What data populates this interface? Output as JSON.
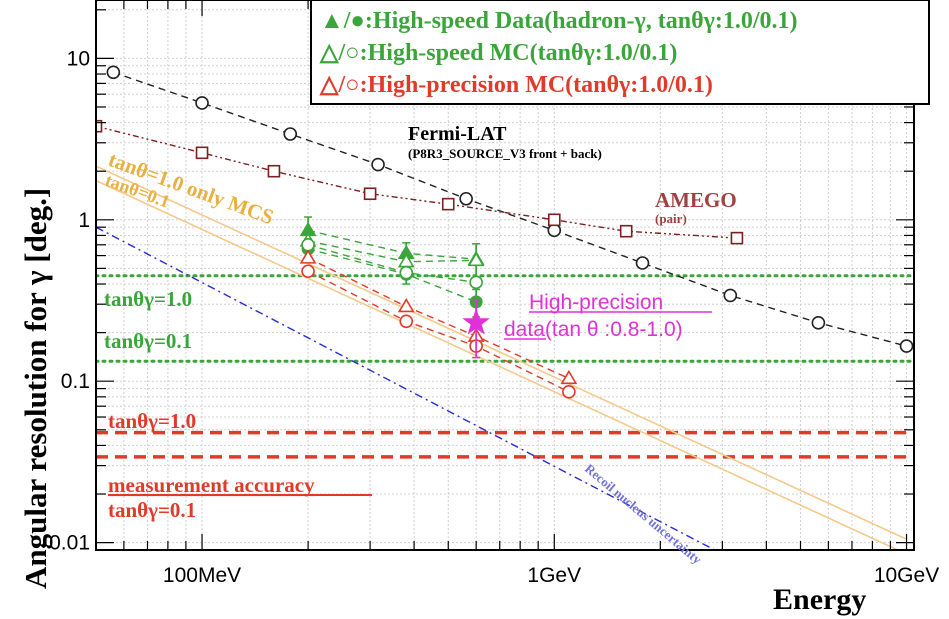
{
  "chart_data": {
    "type": "scatter",
    "xscale": "log",
    "yscale": "log",
    "xlim": [
      0.05,
      10.5
    ],
    "ylim": [
      0.009,
      23
    ],
    "xlabel": "Energy",
    "ylabel": "Angular resolution for γ [deg.]",
    "x_ticks": [
      {
        "value": 0.1,
        "label": "100MeV"
      },
      {
        "value": 1,
        "label": "1GeV"
      },
      {
        "value": 10,
        "label": "10GeV"
      }
    ],
    "y_ticks": [
      {
        "value": 0.01,
        "label": "0.01"
      },
      {
        "value": 0.1,
        "label": "0.1"
      },
      {
        "value": 1,
        "label": "1"
      },
      {
        "value": 10,
        "label": "10"
      }
    ],
    "grid": true,
    "legend": {
      "placement": "top-right",
      "entries": [
        {
          "symbols": "▲/●",
          "text": ":High-speed Data(hadron-γ, tanθγ:1.0/0.1)",
          "color": "#3aa53a"
        },
        {
          "symbols": "△/○",
          "text": ":High-speed MC(tanθγ:1.0/0.1)",
          "color": "#3aa53a"
        },
        {
          "symbols": "△/○",
          "text": ":High-precision MC(tanθγ:1.0/0.1)",
          "color": "#e03a2a"
        }
      ]
    },
    "series": [
      {
        "name": "Fermi-LAT",
        "subname": "(P8R3_SOURCE_V3 front + back)",
        "color": "#222222",
        "marker": "circle-open",
        "line": "dashed",
        "x": [
          0.056,
          0.1,
          0.178,
          0.316,
          0.562,
          1.0,
          1.78,
          3.16,
          5.62,
          10.0
        ],
        "y": [
          8.2,
          5.3,
          3.4,
          2.2,
          1.35,
          0.86,
          0.54,
          0.34,
          0.23,
          0.165
        ]
      },
      {
        "name": "AMEGO",
        "subname": "(pair)",
        "color": "#7a2020",
        "marker": "square-open",
        "line": "dashdotdot",
        "x": [
          0.05,
          0.1,
          0.16,
          0.3,
          0.5,
          1.0,
          1.6,
          3.3
        ],
        "y": [
          3.8,
          2.6,
          2.0,
          1.45,
          1.25,
          1.0,
          0.85,
          0.77
        ]
      },
      {
        "name": "High-speed Data tanθγ=1.0",
        "color": "#3aa53a",
        "marker": "triangle-filled",
        "line": "dashed",
        "x": [
          0.2,
          0.38,
          0.6
        ],
        "y": [
          0.86,
          0.62,
          0.57
        ],
        "yerr": [
          0.18,
          0.1,
          0.14
        ]
      },
      {
        "name": "High-speed Data tanθγ=0.1",
        "color": "#3aa53a",
        "marker": "circle-filled",
        "line": "dashed",
        "x": [
          0.2,
          0.38,
          0.6
        ],
        "y": [
          0.66,
          0.46,
          0.31
        ],
        "yerr": [
          0.1,
          0.06,
          0.06
        ]
      },
      {
        "name": "High-speed MC tanθγ=1.0",
        "color": "#3aa53a",
        "marker": "triangle-open",
        "line": "dashed",
        "x": [
          0.2,
          0.38,
          0.6
        ],
        "y": [
          0.74,
          0.55,
          0.56
        ]
      },
      {
        "name": "High-speed MC tanθγ=0.1",
        "color": "#3aa53a",
        "marker": "circle-open",
        "line": "dashed",
        "x": [
          0.2,
          0.38,
          0.6
        ],
        "y": [
          0.7,
          0.47,
          0.41
        ]
      },
      {
        "name": "High-precision MC tanθγ=1.0",
        "color": "#e03a2a",
        "marker": "triangle-open",
        "line": "dashed",
        "x": [
          0.2,
          0.38,
          0.6,
          1.1
        ],
        "y": [
          0.58,
          0.29,
          0.19,
          0.104
        ]
      },
      {
        "name": "High-precision MC tanθγ=0.1",
        "color": "#e03a2a",
        "marker": "circle-open",
        "line": "dashed",
        "x": [
          0.2,
          0.38,
          0.6,
          1.1
        ],
        "y": [
          0.48,
          0.235,
          0.165,
          0.086
        ]
      },
      {
        "name": "High-precision data",
        "color": "#e030d8",
        "marker": "star-filled",
        "x": [
          0.6
        ],
        "y": [
          0.23
        ],
        "yerr": [
          0.09
        ]
      }
    ],
    "reference_lines": [
      {
        "kind": "hline",
        "y": 0.45,
        "color": "#3aa53a",
        "style": "dotted"
      },
      {
        "kind": "hline",
        "y": 0.133,
        "color": "#3aa53a",
        "style": "dotted"
      },
      {
        "kind": "hline",
        "y": 0.048,
        "color": "#e03a2a",
        "style": "dashed-thick"
      },
      {
        "kind": "hline",
        "y": 0.034,
        "color": "#e03a2a",
        "style": "dashed-thick"
      },
      {
        "kind": "line",
        "name": "tanθ=1.0 only MCS",
        "color": "#f5c98a",
        "points": [
          [
            0.05,
            2.15
          ],
          [
            10.0,
            0.0105
          ]
        ]
      },
      {
        "kind": "line",
        "name": "tanθ=0.1",
        "color": "#f5c98a",
        "points": [
          [
            0.05,
            1.75
          ],
          [
            10.0,
            0.0085
          ]
        ]
      },
      {
        "kind": "line",
        "name": "Recoil nucleus uncertainty",
        "color": "#2a2ad0",
        "style": "dashdot",
        "points": [
          [
            0.05,
            0.9
          ],
          [
            3.0,
            0.0085
          ]
        ]
      }
    ],
    "annotations": {
      "fermi": "Fermi-LAT",
      "fermi_sub": "(P8R3_SOURCE_V3 front + back)",
      "amego": "AMEGO",
      "amego_sub": "(pair)",
      "mcs1": "tanθ=1.0 only MCS",
      "mcs2": "tanθ=0.1",
      "green1": "tanθγ=1.0",
      "green2": "tanθγ=0.1",
      "red1": "tanθγ=1.0",
      "meas": "measurement accuracy",
      "red2": "tanθγ=0.1",
      "hp1": "High-precision",
      "hp2": "data(tan θ :0.8-1.0)",
      "recoil": "Recoil nucleus uncertainty"
    }
  }
}
